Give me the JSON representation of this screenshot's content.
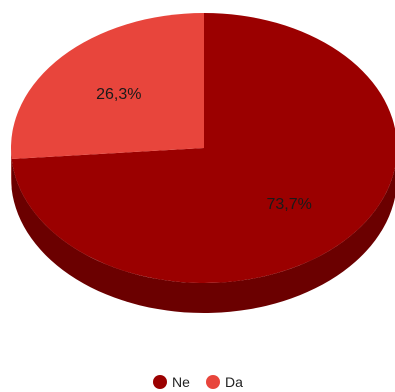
{
  "chart_data": {
    "type": "pie",
    "style": "3d",
    "categories": [
      "Ne",
      "Da"
    ],
    "values": [
      73.7,
      26.3
    ],
    "value_labels": [
      "73,7%",
      "26,3%"
    ],
    "colors": [
      "#9b0000",
      "#e8453c"
    ],
    "side_colors": [
      "#6b0000",
      "#a32f28"
    ],
    "label_colors": [
      "#1a1a1a",
      "#1a1a1a"
    ],
    "legend": {
      "placement": "bottom",
      "items": [
        {
          "label": "Ne",
          "color": "#9b0000"
        },
        {
          "label": "Da",
          "color": "#e8453c"
        }
      ]
    }
  }
}
